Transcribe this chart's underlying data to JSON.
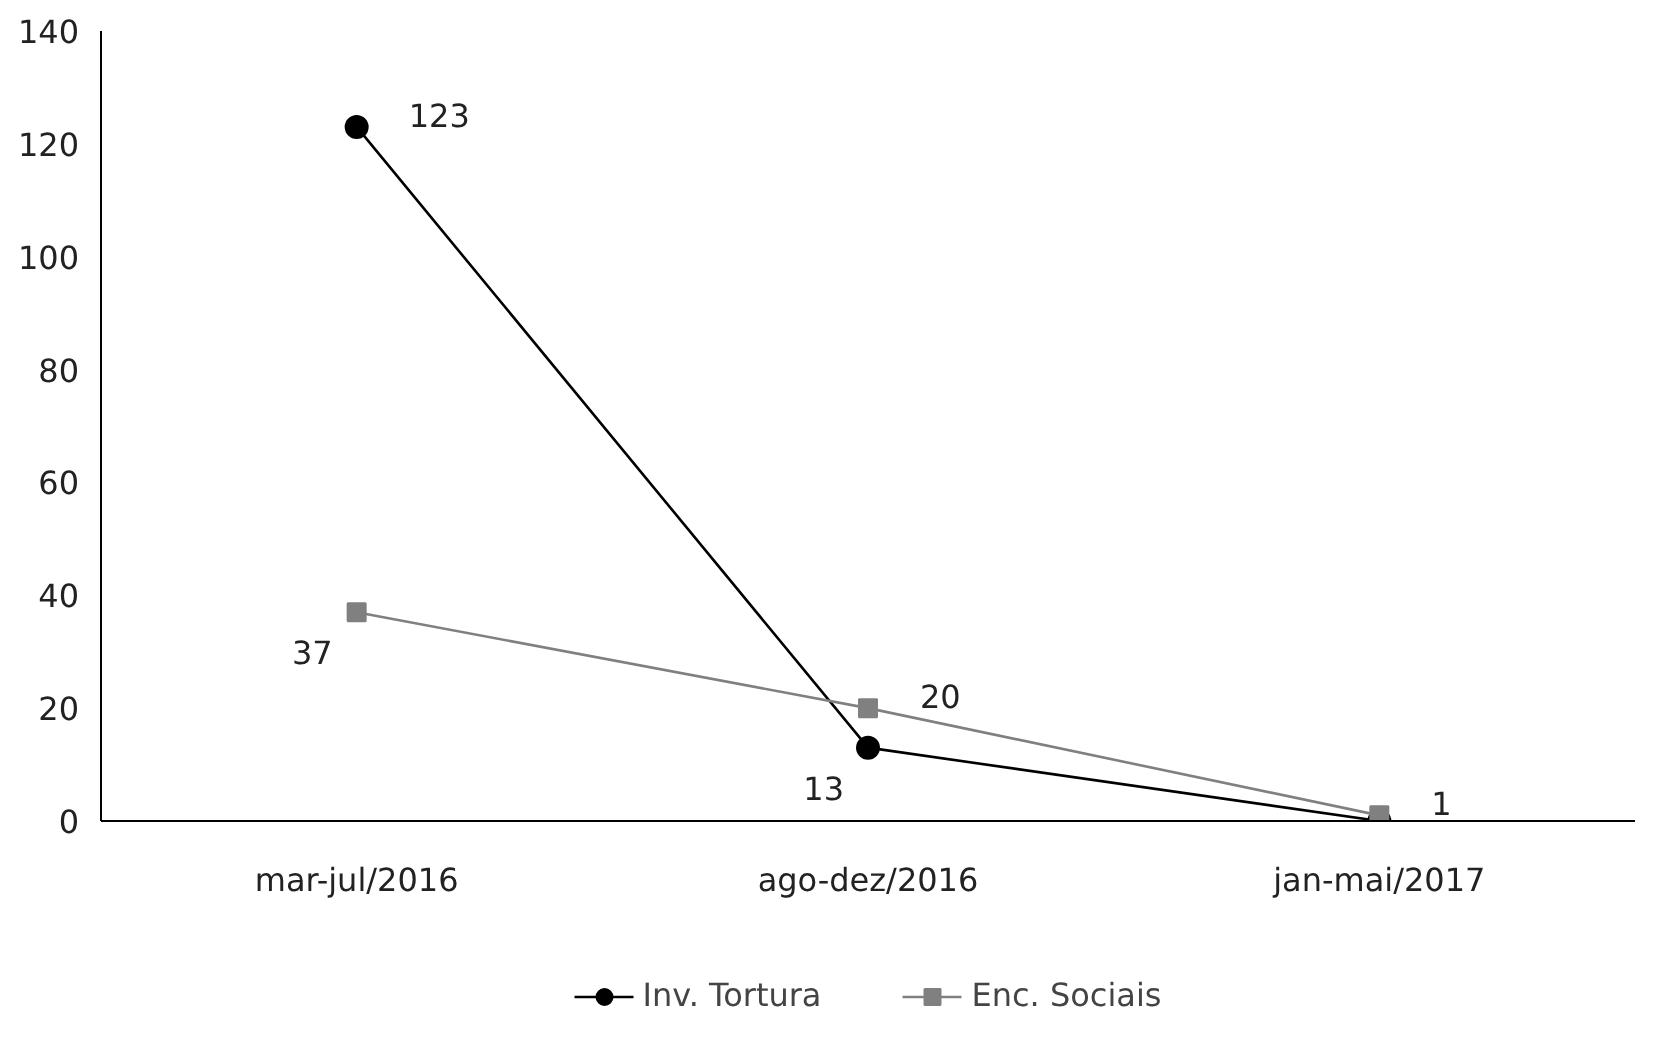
{
  "chart_data": {
    "type": "line",
    "categories": [
      "mar-jul/2016",
      "ago-dez/2016",
      "jan-mai/2017"
    ],
    "series": [
      {
        "name": "Inv. Tortura",
        "color": "#000000",
        "marker": "circle",
        "values": [
          123,
          13,
          0
        ],
        "value_labels": [
          "123",
          "13",
          null
        ]
      },
      {
        "name": "Enc. Sociais",
        "color": "#808080",
        "marker": "square",
        "values": [
          37,
          20,
          1
        ],
        "value_labels": [
          "37",
          "20",
          "1"
        ]
      }
    ],
    "ylim": [
      0,
      140
    ],
    "yticks": [
      0,
      20,
      40,
      60,
      80,
      100,
      120,
      140
    ],
    "grid": false,
    "legend": "bottom"
  }
}
